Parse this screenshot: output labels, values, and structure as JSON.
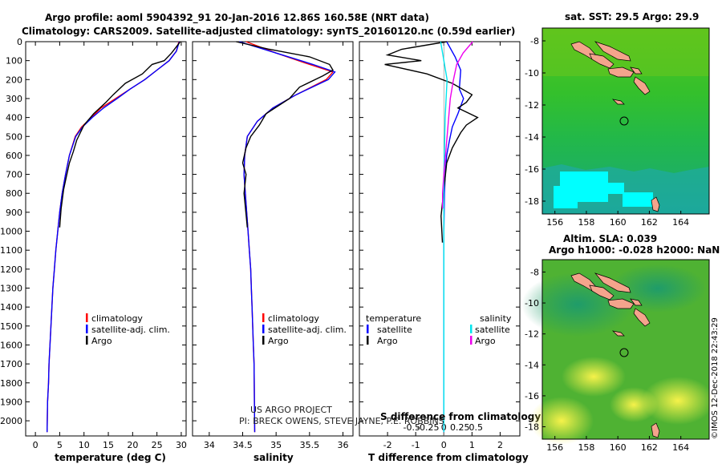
{
  "title_line1": "Argo profile: aoml 5904392_91 20-Jan-2016 12.86S 160.58E (NRT data)",
  "title_line2": "Climatology: CARS2009. Satellite-adjusted climatology: synTS_20160120.nc (0.59d earlier)",
  "colors": {
    "clim": "#ff0000",
    "sat": "#0000ff",
    "argo": "#000000",
    "sat_s": "#00e5ee",
    "argo_s": "#ee00ee",
    "land": "#f4a48c",
    "cyan": "#00ffff",
    "green": "#22c040"
  },
  "depth_ticks": [
    0,
    100,
    200,
    300,
    400,
    500,
    600,
    700,
    800,
    900,
    1000,
    1100,
    1200,
    1300,
    1400,
    1500,
    1600,
    1700,
    1800,
    1900,
    2000
  ],
  "legend": {
    "clim": "climatology",
    "sat": "satellite-adj. clim.",
    "argo": "Argo"
  },
  "diff_legend": {
    "temp_header": "temperature",
    "sal_header": "salinity",
    "sat": "satellite",
    "argo": "Argo"
  },
  "credits": {
    "line1": "US ARGO PROJECT",
    "line2": "PI: BRECK OWENS, STEVE JAYNE, P.E. ROBBINS"
  },
  "chart_data": [
    {
      "type": "line",
      "title": "",
      "xlabel": "temperature (deg C)",
      "ylabel": "depth",
      "xlim": [
        -2,
        31
      ],
      "ylim": [
        2080,
        0
      ],
      "x_ticks": [
        0,
        5,
        10,
        15,
        20,
        25,
        30
      ],
      "series": [
        {
          "name": "climatology",
          "color": "#ff0000",
          "x": [
            29.5,
            29,
            27.5,
            25,
            22.5,
            19.5,
            16.5,
            13.5,
            11.5,
            9.5,
            8.2,
            7.0,
            6.2,
            5.5,
            5.0,
            4.6,
            4.2,
            3.9,
            3.6,
            3.4,
            3.2,
            3.0,
            2.8,
            2.7,
            2.5,
            2.4
          ],
          "depth": [
            0,
            50,
            100,
            150,
            200,
            250,
            300,
            350,
            400,
            450,
            500,
            600,
            700,
            800,
            900,
            1000,
            1100,
            1200,
            1300,
            1400,
            1500,
            1600,
            1700,
            1800,
            1900,
            2060
          ]
        },
        {
          "name": "satellite-adj. clim.",
          "color": "#0000ff",
          "x": [
            29.6,
            29,
            27.5,
            25,
            22.5,
            19.5,
            16.8,
            14.0,
            11.7,
            9.7,
            8.3,
            7.0,
            6.2,
            5.5,
            5.0,
            4.6,
            4.2,
            3.9,
            3.6,
            3.4,
            3.2,
            3.0,
            2.8,
            2.7,
            2.5,
            2.4
          ],
          "depth": [
            0,
            50,
            100,
            150,
            200,
            250,
            300,
            350,
            400,
            450,
            500,
            600,
            700,
            800,
            900,
            1000,
            1100,
            1200,
            1300,
            1400,
            1500,
            1600,
            1700,
            1800,
            1900,
            2060
          ]
        },
        {
          "name": "Argo",
          "color": "#000000",
          "x": [
            29.8,
            29.5,
            28,
            26.5,
            24,
            22,
            18.5,
            16,
            14.5,
            12,
            10,
            8.5,
            7.8,
            7.0,
            6.3,
            5.8,
            5.3,
            5.0
          ],
          "depth": [
            0,
            10,
            60,
            100,
            120,
            170,
            220,
            280,
            320,
            380,
            440,
            520,
            580,
            640,
            720,
            780,
            880,
            980
          ]
        }
      ]
    },
    {
      "type": "line",
      "title": "",
      "xlabel": "salinity",
      "ylabel": "depth",
      "xlim": [
        33.75,
        36.15
      ],
      "ylim": [
        2080,
        0
      ],
      "x_ticks": [
        34,
        34.5,
        35,
        35.5,
        36
      ],
      "series": [
        {
          "name": "climatology",
          "color": "#ff0000",
          "x": [
            34.55,
            35.0,
            35.5,
            35.85,
            35.75,
            35.3,
            34.95,
            34.72,
            34.57,
            34.53,
            34.52,
            34.54,
            34.56,
            34.58,
            34.6,
            34.62,
            34.63,
            34.64,
            34.65,
            34.66,
            34.67,
            34.68
          ],
          "depth": [
            0,
            60,
            120,
            160,
            200,
            280,
            350,
            420,
            500,
            600,
            700,
            800,
            900,
            1000,
            1100,
            1200,
            1300,
            1400,
            1500,
            1600,
            1700,
            2060
          ]
        },
        {
          "name": "satellite-adj. clim.",
          "color": "#0000ff",
          "x": [
            34.45,
            35.0,
            35.55,
            35.88,
            35.78,
            35.3,
            34.95,
            34.72,
            34.57,
            34.53,
            34.52,
            34.54,
            34.56,
            34.58,
            34.6,
            34.62,
            34.63,
            34.64,
            34.65,
            34.66,
            34.67,
            34.68
          ],
          "depth": [
            0,
            60,
            120,
            160,
            200,
            280,
            350,
            420,
            500,
            600,
            700,
            800,
            900,
            1000,
            1100,
            1200,
            1300,
            1400,
            1500,
            1600,
            1700,
            2060
          ]
        },
        {
          "name": "Argo",
          "color": "#000000",
          "x": [
            34.4,
            34.9,
            35.5,
            35.8,
            35.85,
            35.7,
            35.35,
            35.2,
            34.85,
            34.75,
            34.62,
            34.55,
            34.5,
            34.55,
            34.52,
            34.57
          ],
          "depth": [
            0,
            40,
            80,
            120,
            150,
            180,
            240,
            300,
            380,
            440,
            500,
            560,
            640,
            700,
            800,
            980
          ]
        }
      ]
    },
    {
      "type": "line",
      "title": "",
      "xlabel": "T difference from climatology",
      "ylabel": "depth",
      "xlim": [
        -3,
        2.7
      ],
      "ylim": [
        2080,
        0
      ],
      "x_ticks": [
        -2,
        -1,
        0,
        1,
        2
      ],
      "secondary_axis": {
        "label": "S difference from climatology",
        "ticks": [
          -0.5,
          -0.25,
          0,
          0.25,
          0.5
        ]
      },
      "series": [
        {
          "name": "temperature satellite",
          "color": "#0000ff",
          "x": [
            0.1,
            0.4,
            0.6,
            0.55,
            0.7,
            0.5,
            0.3,
            0.2,
            0.1,
            0.05,
            0.02,
            0.0,
            0.0,
            0.0,
            0.0
          ],
          "depth": [
            0,
            80,
            150,
            250,
            300,
            380,
            450,
            520,
            600,
            700,
            800,
            1000,
            1400,
            1800,
            2060
          ]
        },
        {
          "name": "temperature Argo",
          "color": "#000000",
          "x": [
            0.1,
            -1.5,
            -2.0,
            -0.8,
            -2.1,
            -0.6,
            0.3,
            1.0,
            0.8,
            0.5,
            1.2,
            0.8,
            0.6,
            0.3,
            0.1,
            0.0,
            -0.1,
            -0.05
          ],
          "depth": [
            0,
            40,
            70,
            100,
            120,
            170,
            220,
            280,
            320,
            350,
            400,
            440,
            480,
            560,
            640,
            780,
            920,
            1060
          ]
        },
        {
          "name": "salinity satellite",
          "color": "#00e5ee",
          "x": [
            -0.05,
            0.0,
            0.05,
            0.02,
            0.0,
            0.0,
            0.0,
            0.0
          ],
          "depth": [
            0,
            100,
            200,
            400,
            700,
            1000,
            1500,
            2060
          ]
        },
        {
          "name": "salinity Argo",
          "color": "#ee00ee",
          "x": [
            0.45,
            0.3,
            0.2,
            0.15,
            0.1,
            0.05,
            0.0,
            -0.02,
            -0.02
          ],
          "depth": [
            0,
            60,
            120,
            200,
            300,
            500,
            700,
            800,
            880
          ]
        }
      ]
    },
    {
      "type": "heatmap",
      "title": "sat. SST: 29.5 Argo: 29.9",
      "x_ticks": [
        156,
        158,
        160,
        162,
        164
      ],
      "y_ticks": [
        -8,
        -10,
        -12,
        -14,
        -16,
        -18
      ],
      "xlim": [
        155.2,
        165.8
      ],
      "ylim": [
        -18.8,
        -7.2
      ],
      "profile_position": [
        160.58,
        -12.86
      ]
    },
    {
      "type": "heatmap",
      "title": "Altim. SLA: 0.039",
      "subtitle": "Argo h1000: -0.028 h2000: NaN",
      "x_ticks": [
        156,
        158,
        160,
        162,
        164
      ],
      "y_ticks": [
        -8,
        -10,
        -12,
        -14,
        -16,
        -18
      ],
      "xlim": [
        155.2,
        165.8
      ],
      "ylim": [
        -18.8,
        -7.2
      ],
      "profile_position": [
        160.58,
        -12.86
      ]
    }
  ],
  "footer_label": "©IMOS 12-Dec-2018 22:43:29"
}
